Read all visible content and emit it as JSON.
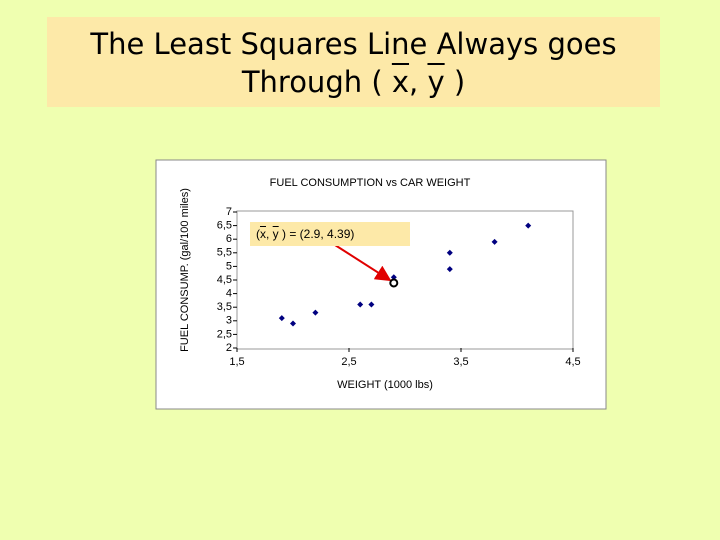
{
  "slide_title": [
    "The Least Squares Line Always goes",
    "Through ( ",
    "x",
    ", ",
    "y",
    " )"
  ],
  "chart_data": {
    "type": "scatter",
    "title": "FUEL CONSUMPTION vs CAR WEIGHT",
    "x_label": "WEIGHT (1000 lbs)",
    "y_label": "FUEL CONSUMP. (gal/100 miles)",
    "x": [
      1.9,
      2.0,
      2.2,
      2.6,
      2.7,
      2.9,
      3.4,
      3.4,
      3.8,
      4.1
    ],
    "series": [
      {
        "color": "#000080",
        "values": [
          3.1,
          2.9,
          3.3,
          3.6,
          3.6,
          4.6,
          5.5,
          4.9,
          5.9,
          6.5
        ]
      }
    ],
    "xlim": [
      1.5,
      4.5
    ],
    "xticks": [
      {
        "value": 1.5,
        "label": "1,5"
      },
      {
        "value": 2.5,
        "label": "2,5"
      },
      {
        "value": 3.5,
        "label": "3,5"
      },
      {
        "value": 4.5,
        "label": "4,5"
      }
    ],
    "ylim": [
      2,
      7
    ],
    "yticks": [
      2,
      {
        "value": 2.5,
        "label": "2,5"
      },
      3,
      {
        "value": 3.5,
        "label": "3,5"
      },
      4,
      {
        "value": 4.5,
        "label": "4,5"
      },
      5,
      {
        "value": 5.5,
        "label": "5,5"
      },
      6,
      {
        "value": 6.5,
        "label": "6,5"
      },
      7
    ],
    "mean_point": {
      "x": 2.9,
      "y": 4.39
    },
    "annotation": [
      "(",
      "x",
      ", ",
      "y",
      " ) = (2.9, 4.39)"
    ],
    "grid": false
  }
}
